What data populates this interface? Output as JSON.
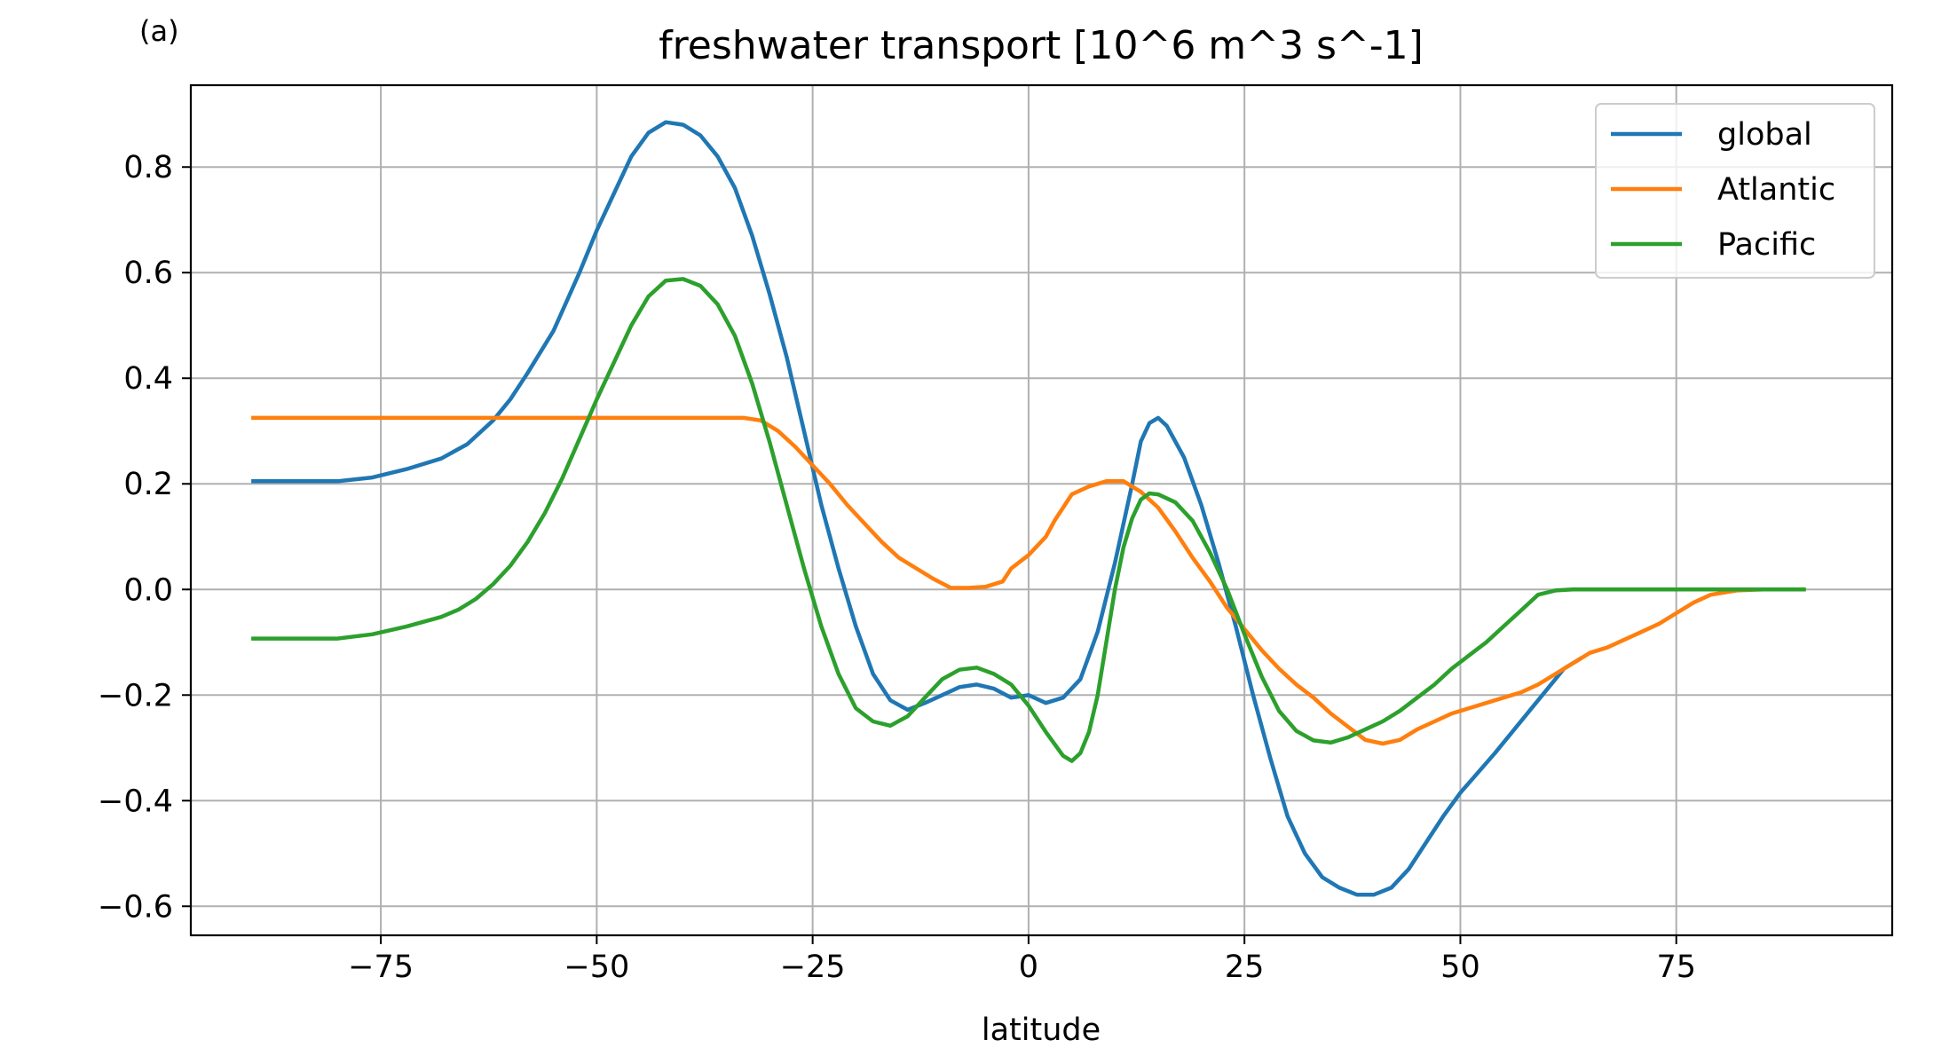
{
  "panel_label": "(a)",
  "chart_data": {
    "type": "line",
    "title": "freshwater transport [10^6 m^3 s^-1]",
    "xlabel": "latitude",
    "ylabel": "",
    "xlim": [
      -97,
      100
    ],
    "ylim": [
      -0.655,
      0.955
    ],
    "xticks": [
      -75,
      -50,
      -25,
      0,
      25,
      50,
      75
    ],
    "xtick_labels": [
      "−75",
      "−50",
      "−25",
      "0",
      "25",
      "50",
      "75"
    ],
    "yticks": [
      -0.6,
      -0.4,
      -0.2,
      0.0,
      0.2,
      0.4,
      0.6,
      0.8
    ],
    "ytick_labels": [
      "−0.6",
      "−0.4",
      "−0.2",
      "0.0",
      "0.2",
      "0.4",
      "0.6",
      "0.8"
    ],
    "grid": true,
    "legend_position": "top-right",
    "series": [
      {
        "name": "global",
        "color": "#1f77b4",
        "points": [
          [
            -90,
            0.205
          ],
          [
            -80,
            0.205
          ],
          [
            -76,
            0.212
          ],
          [
            -72,
            0.228
          ],
          [
            -68,
            0.248
          ],
          [
            -65,
            0.275
          ],
          [
            -62,
            0.32
          ],
          [
            -60,
            0.36
          ],
          [
            -58,
            0.41
          ],
          [
            -55,
            0.49
          ],
          [
            -52,
            0.6
          ],
          [
            -50,
            0.68
          ],
          [
            -48,
            0.75
          ],
          [
            -46,
            0.82
          ],
          [
            -44,
            0.865
          ],
          [
            -42,
            0.885
          ],
          [
            -40,
            0.88
          ],
          [
            -38,
            0.86
          ],
          [
            -36,
            0.82
          ],
          [
            -34,
            0.76
          ],
          [
            -32,
            0.67
          ],
          [
            -30,
            0.56
          ],
          [
            -28,
            0.44
          ],
          [
            -26,
            0.3
          ],
          [
            -24,
            0.16
          ],
          [
            -22,
            0.04
          ],
          [
            -20,
            -0.07
          ],
          [
            -18,
            -0.16
          ],
          [
            -16,
            -0.21
          ],
          [
            -14,
            -0.228
          ],
          [
            -12,
            -0.215
          ],
          [
            -10,
            -0.2
          ],
          [
            -8,
            -0.185
          ],
          [
            -6,
            -0.18
          ],
          [
            -4,
            -0.188
          ],
          [
            -2,
            -0.205
          ],
          [
            0,
            -0.2
          ],
          [
            2,
            -0.215
          ],
          [
            4,
            -0.205
          ],
          [
            6,
            -0.17
          ],
          [
            8,
            -0.08
          ],
          [
            10,
            0.05
          ],
          [
            12,
            0.2
          ],
          [
            13,
            0.28
          ],
          [
            14,
            0.315
          ],
          [
            15,
            0.325
          ],
          [
            16,
            0.31
          ],
          [
            18,
            0.25
          ],
          [
            20,
            0.16
          ],
          [
            22,
            0.05
          ],
          [
            24,
            -0.07
          ],
          [
            26,
            -0.2
          ],
          [
            28,
            -0.32
          ],
          [
            30,
            -0.43
          ],
          [
            32,
            -0.5
          ],
          [
            34,
            -0.545
          ],
          [
            36,
            -0.565
          ],
          [
            38,
            -0.578
          ],
          [
            40,
            -0.578
          ],
          [
            42,
            -0.565
          ],
          [
            44,
            -0.53
          ],
          [
            46,
            -0.48
          ],
          [
            48,
            -0.43
          ],
          [
            50,
            -0.385
          ],
          [
            54,
            -0.31
          ],
          [
            58,
            -0.23
          ],
          [
            62,
            -0.15
          ],
          [
            64,
            -0.13
          ]
        ]
      },
      {
        "name": "Atlantic",
        "color": "#ff7f0e",
        "points": [
          [
            -90,
            0.325
          ],
          [
            -33,
            0.325
          ],
          [
            -31,
            0.32
          ],
          [
            -29,
            0.3
          ],
          [
            -27,
            0.27
          ],
          [
            -25,
            0.235
          ],
          [
            -23,
            0.2
          ],
          [
            -21,
            0.16
          ],
          [
            -19,
            0.125
          ],
          [
            -17,
            0.09
          ],
          [
            -15,
            0.06
          ],
          [
            -13,
            0.04
          ],
          [
            -11,
            0.02
          ],
          [
            -9,
            0.003
          ],
          [
            -7,
            0.003
          ],
          [
            -5,
            0.005
          ],
          [
            -3,
            0.015
          ],
          [
            -2,
            0.04
          ],
          [
            0,
            0.065
          ],
          [
            2,
            0.1
          ],
          [
            3,
            0.13
          ],
          [
            5,
            0.18
          ],
          [
            7,
            0.195
          ],
          [
            9,
            0.205
          ],
          [
            11,
            0.205
          ],
          [
            13,
            0.185
          ],
          [
            15,
            0.155
          ],
          [
            17,
            0.11
          ],
          [
            19,
            0.06
          ],
          [
            21,
            0.015
          ],
          [
            23,
            -0.035
          ],
          [
            25,
            -0.075
          ],
          [
            27,
            -0.115
          ],
          [
            29,
            -0.15
          ],
          [
            31,
            -0.18
          ],
          [
            33,
            -0.205
          ],
          [
            35,
            -0.235
          ],
          [
            37,
            -0.26
          ],
          [
            39,
            -0.285
          ],
          [
            41,
            -0.292
          ],
          [
            43,
            -0.285
          ],
          [
            45,
            -0.265
          ],
          [
            47,
            -0.25
          ],
          [
            49,
            -0.235
          ],
          [
            51,
            -0.225
          ],
          [
            53,
            -0.215
          ],
          [
            55,
            -0.205
          ],
          [
            57,
            -0.195
          ],
          [
            59,
            -0.18
          ],
          [
            61,
            -0.16
          ],
          [
            63,
            -0.14
          ],
          [
            65,
            -0.12
          ],
          [
            67,
            -0.11
          ],
          [
            69,
            -0.095
          ],
          [
            71,
            -0.08
          ],
          [
            73,
            -0.065
          ],
          [
            75,
            -0.045
          ],
          [
            77,
            -0.025
          ],
          [
            79,
            -0.01
          ],
          [
            82,
            -0.002
          ],
          [
            85,
            0.0
          ],
          [
            90,
            0.0
          ]
        ]
      },
      {
        "name": "Pacific",
        "color": "#2ca02c",
        "points": [
          [
            -90,
            -0.093
          ],
          [
            -80,
            -0.093
          ],
          [
            -76,
            -0.085
          ],
          [
            -72,
            -0.07
          ],
          [
            -68,
            -0.052
          ],
          [
            -66,
            -0.038
          ],
          [
            -64,
            -0.018
          ],
          [
            -62,
            0.01
          ],
          [
            -60,
            0.045
          ],
          [
            -58,
            0.09
          ],
          [
            -56,
            0.145
          ],
          [
            -54,
            0.21
          ],
          [
            -52,
            0.285
          ],
          [
            -50,
            0.36
          ],
          [
            -48,
            0.43
          ],
          [
            -46,
            0.5
          ],
          [
            -44,
            0.555
          ],
          [
            -42,
            0.585
          ],
          [
            -40,
            0.588
          ],
          [
            -38,
            0.575
          ],
          [
            -36,
            0.54
          ],
          [
            -34,
            0.48
          ],
          [
            -32,
            0.39
          ],
          [
            -30,
            0.28
          ],
          [
            -28,
            0.16
          ],
          [
            -26,
            0.04
          ],
          [
            -24,
            -0.07
          ],
          [
            -22,
            -0.16
          ],
          [
            -20,
            -0.225
          ],
          [
            -18,
            -0.25
          ],
          [
            -16,
            -0.258
          ],
          [
            -14,
            -0.24
          ],
          [
            -12,
            -0.205
          ],
          [
            -10,
            -0.17
          ],
          [
            -8,
            -0.152
          ],
          [
            -6,
            -0.148
          ],
          [
            -4,
            -0.16
          ],
          [
            -2,
            -0.18
          ],
          [
            0,
            -0.22
          ],
          [
            2,
            -0.27
          ],
          [
            4,
            -0.315
          ],
          [
            5,
            -0.325
          ],
          [
            6,
            -0.31
          ],
          [
            7,
            -0.27
          ],
          [
            8,
            -0.2
          ],
          [
            9,
            -0.1
          ],
          [
            10,
            0.0
          ],
          [
            11,
            0.08
          ],
          [
            12,
            0.135
          ],
          [
            13,
            0.17
          ],
          [
            14,
            0.182
          ],
          [
            15,
            0.18
          ],
          [
            17,
            0.165
          ],
          [
            19,
            0.13
          ],
          [
            21,
            0.07
          ],
          [
            23,
            0.0
          ],
          [
            25,
            -0.085
          ],
          [
            27,
            -0.165
          ],
          [
            29,
            -0.23
          ],
          [
            31,
            -0.268
          ],
          [
            33,
            -0.286
          ],
          [
            35,
            -0.29
          ],
          [
            37,
            -0.28
          ],
          [
            39,
            -0.265
          ],
          [
            41,
            -0.25
          ],
          [
            43,
            -0.23
          ],
          [
            45,
            -0.205
          ],
          [
            47,
            -0.18
          ],
          [
            49,
            -0.15
          ],
          [
            51,
            -0.125
          ],
          [
            53,
            -0.1
          ],
          [
            55,
            -0.07
          ],
          [
            57,
            -0.04
          ],
          [
            59,
            -0.01
          ],
          [
            61,
            -0.002
          ],
          [
            63,
            0.0
          ],
          [
            90,
            0.0
          ]
        ]
      }
    ]
  }
}
